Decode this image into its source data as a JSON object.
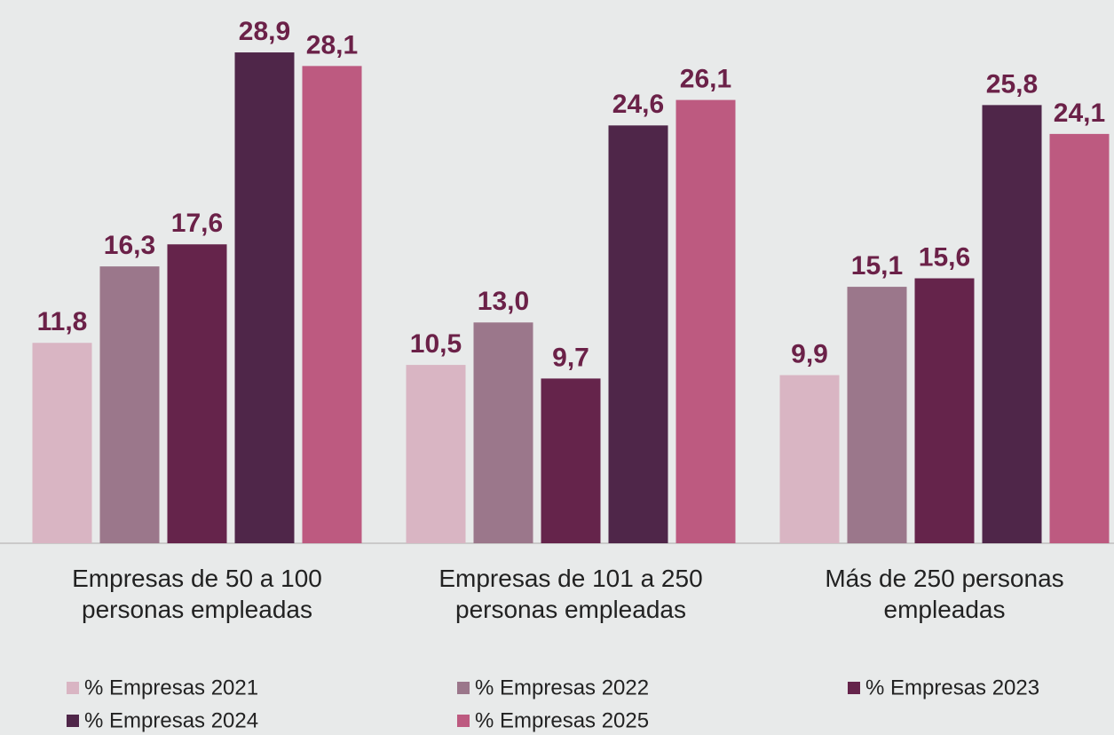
{
  "chart_data": {
    "type": "bar",
    "categories": [
      "Empresas de 50 a 100 personas empleadas",
      "Empresas de 101 a 250 personas empleadas",
      "Más de 250 personas empleadas"
    ],
    "series": [
      {
        "name": "% Empresas 2021",
        "color": "#d9b5c3",
        "values": [
          11.8,
          10.5,
          9.9
        ],
        "value_labels": [
          "11,8",
          "10,5",
          "9,9"
        ]
      },
      {
        "name": "% Empresas 2022",
        "color": "#9b778b",
        "values": [
          16.3,
          13.0,
          15.1
        ],
        "value_labels": [
          "16,3",
          "13,0",
          "15,1"
        ]
      },
      {
        "name": "% Empresas 2023",
        "color": "#65244b",
        "values": [
          17.6,
          9.7,
          15.6
        ],
        "value_labels": [
          "17,6",
          "9,7",
          "15,6"
        ]
      },
      {
        "name": "% Empresas 2024",
        "color": "#4f2649",
        "values": [
          28.9,
          24.6,
          25.8
        ],
        "value_labels": [
          "28,9",
          "24,6",
          "25,8"
        ]
      },
      {
        "name": "% Empresas 2025",
        "color": "#bd5a80",
        "values": [
          28.1,
          26.1,
          24.1
        ],
        "value_labels": [
          "28,1",
          "26,1",
          "24,1"
        ]
      }
    ],
    "ylim": [
      0,
      30
    ],
    "legend": "bottom",
    "label_color": "#6b2148"
  }
}
